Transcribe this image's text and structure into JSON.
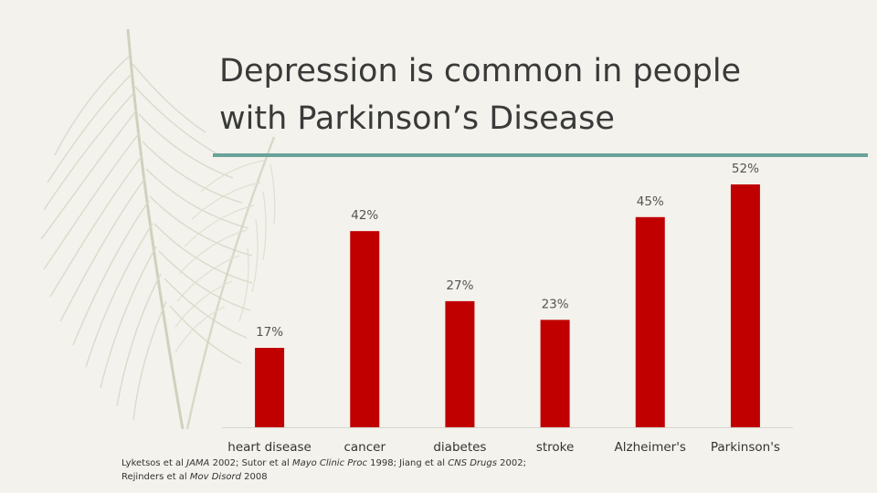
{
  "slide": {
    "title_line1": "Depression is common in people",
    "title_line2": "with Parkinson’s Disease"
  },
  "colors": {
    "background": "#f3f2ec",
    "bar": "#c00000",
    "accent_rule": "#6aa39a",
    "feather": "#d9d8c8"
  },
  "chart_data": {
    "type": "bar",
    "categories": [
      "heart disease",
      "cancer",
      "diabetes",
      "stroke",
      "Alzheimer's",
      "Parkinson's"
    ],
    "values": [
      17,
      42,
      27,
      23,
      45,
      52
    ],
    "data_labels": [
      "17%",
      "42%",
      "27%",
      "23%",
      "45%",
      "52%"
    ],
    "title": "",
    "xlabel": "",
    "ylabel": "",
    "ylim": [
      0,
      52
    ],
    "grid": false,
    "legend": "none"
  },
  "footnote": {
    "l1_a": "Lyketsos et al ",
    "l1_b": "JAMA",
    "l1_c": " 2002; Sutor et al ",
    "l1_d": "Mayo Clinic Proc",
    "l1_e": " 1998; Jiang et al ",
    "l1_f": "CNS Drugs",
    "l1_g": " 2002;",
    "l2_a": "Rejinders et al ",
    "l2_b": "Mov Disord",
    "l2_c": " 2008"
  }
}
